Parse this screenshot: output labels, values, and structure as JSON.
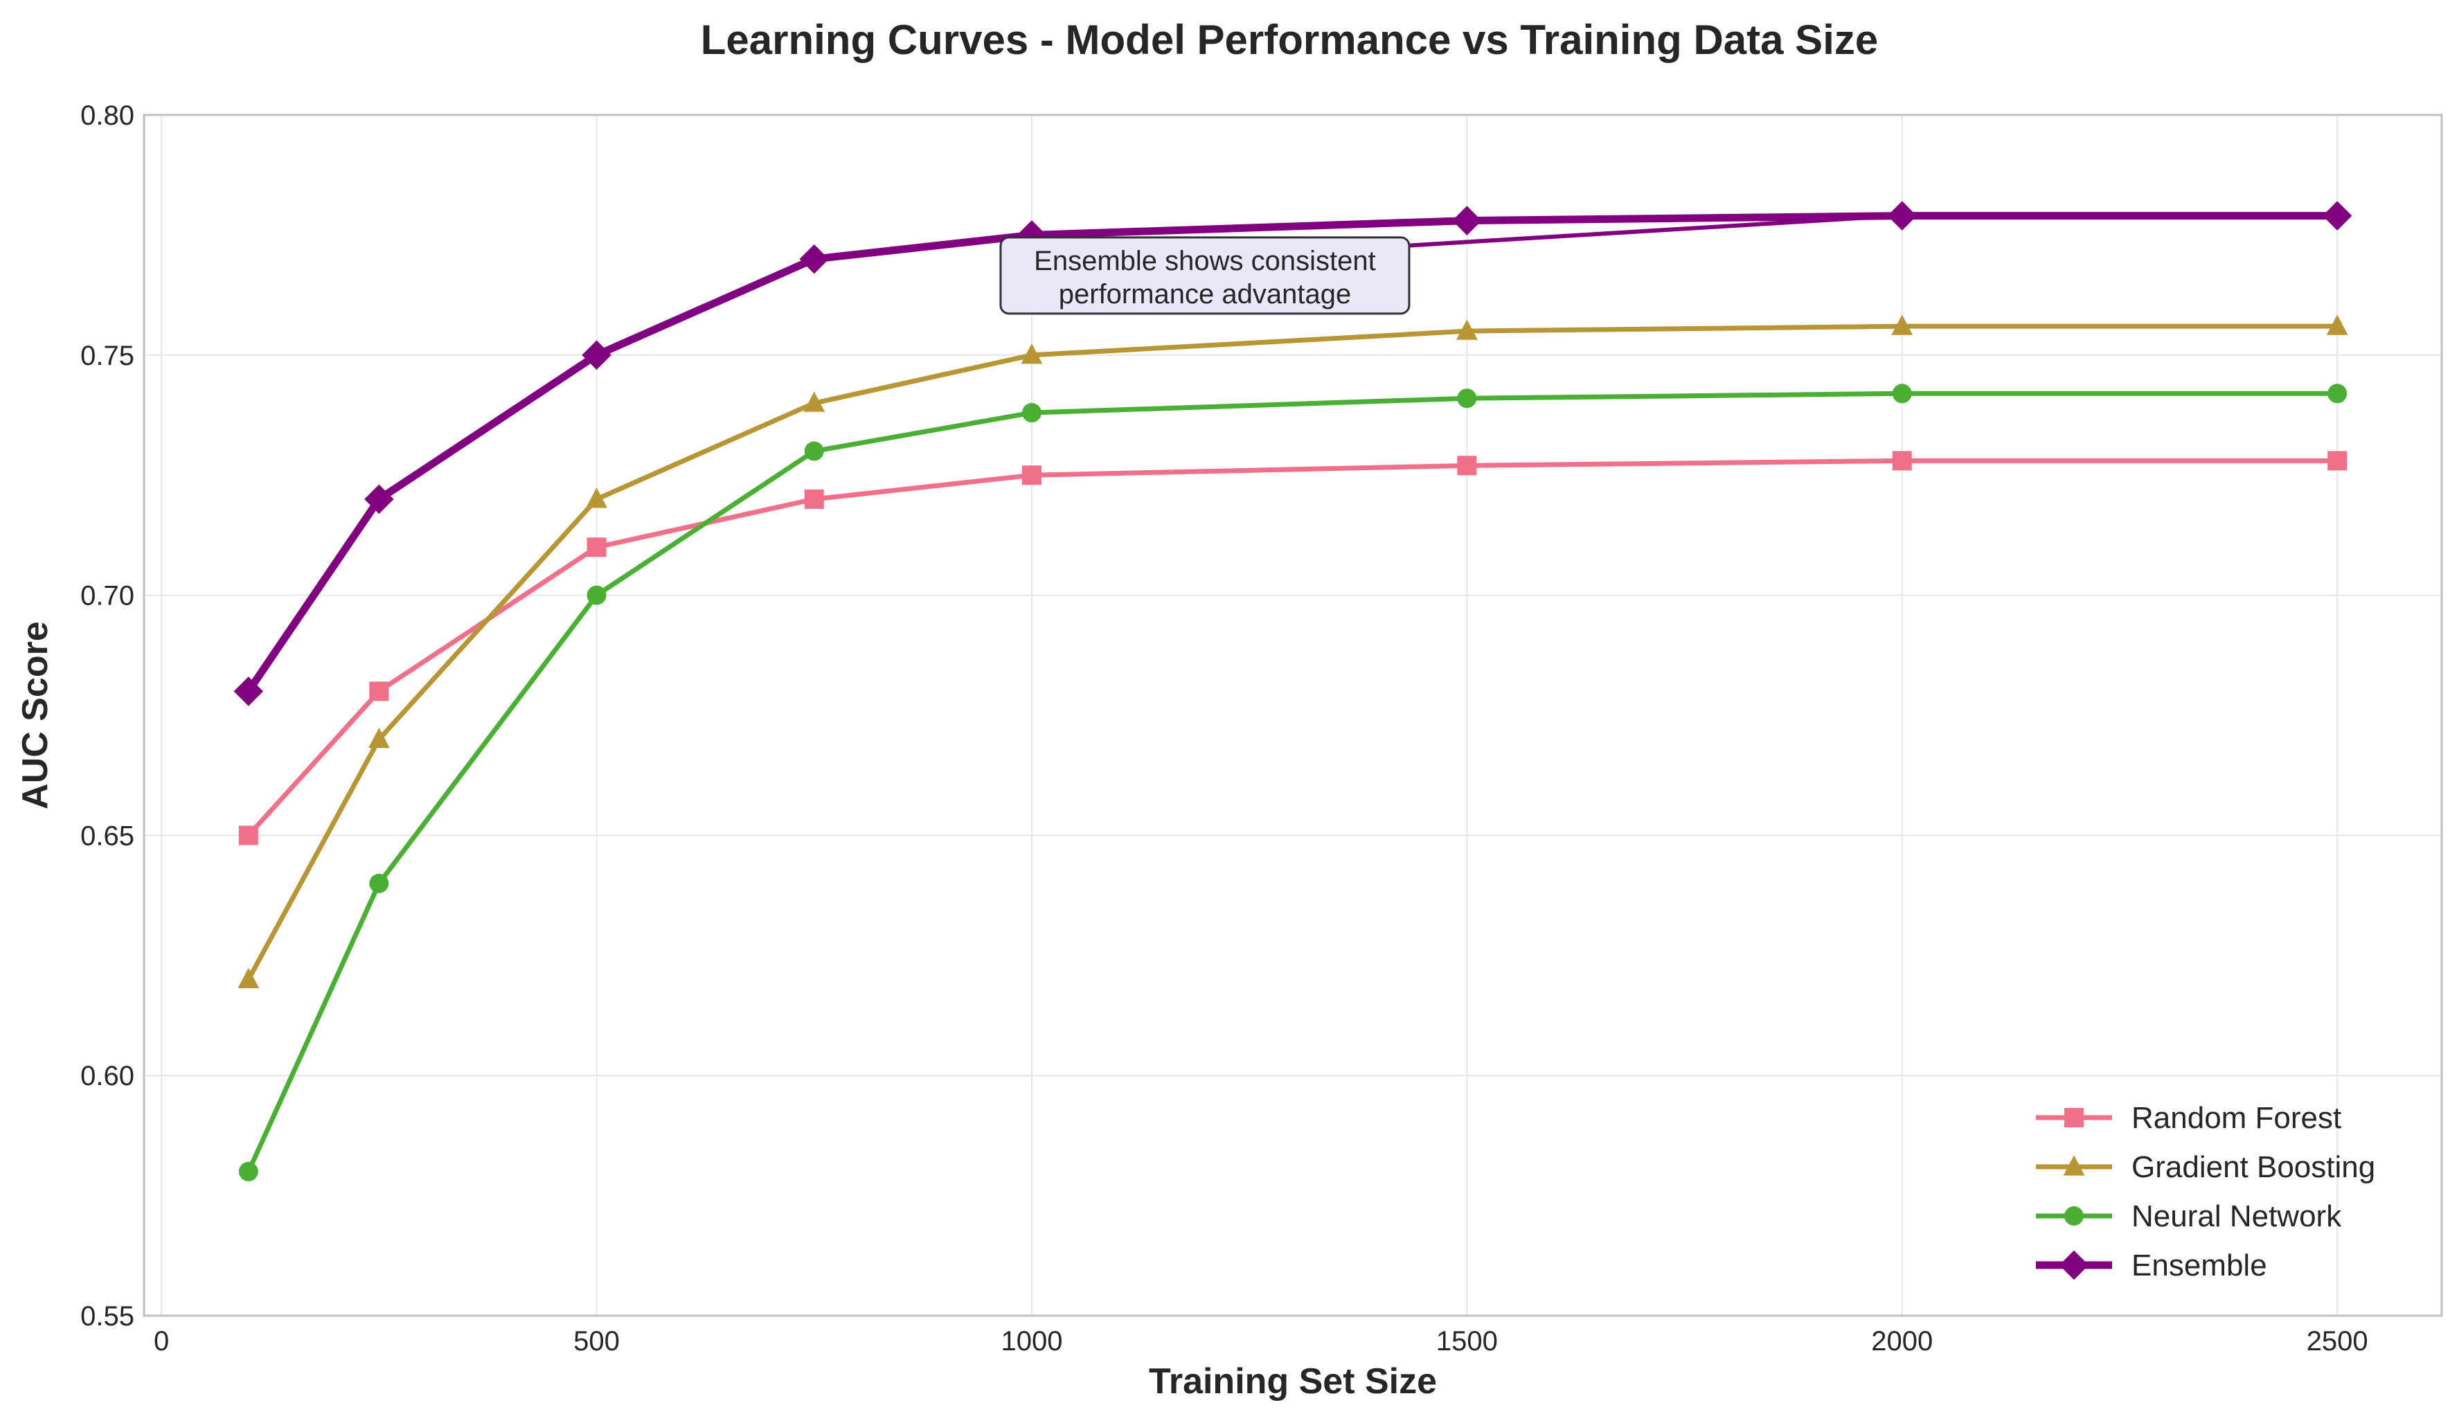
{
  "chart_data": {
    "type": "line",
    "title": "Learning Curves - Model Performance vs Training Data Size",
    "xlabel": "Training Set Size",
    "ylabel": "AUC Score",
    "xlim": [
      -20,
      2620
    ],
    "ylim": [
      0.55,
      0.8
    ],
    "xticks": [
      0,
      500,
      1000,
      1500,
      2000,
      2500
    ],
    "yticks": [
      0.55,
      0.6,
      0.65,
      0.7,
      0.75,
      0.8
    ],
    "xtick_labels": [
      "0",
      "500",
      "1000",
      "1500",
      "2000",
      "2500"
    ],
    "ytick_labels": [
      "0.55",
      "0.60",
      "0.65",
      "0.70",
      "0.75",
      "0.80"
    ],
    "grid": true,
    "legend_position": "bottom-right",
    "x": [
      100,
      250,
      500,
      750,
      1000,
      1500,
      2000,
      2500
    ],
    "series": [
      {
        "name": "Random Forest",
        "color": "#f0708a",
        "marker": "square",
        "linewidth": "normal",
        "values": [
          0.65,
          0.68,
          0.71,
          0.72,
          0.725,
          0.727,
          0.728,
          0.728
        ]
      },
      {
        "name": "Gradient Boosting",
        "color": "#b89535",
        "marker": "triangle",
        "linewidth": "normal",
        "values": [
          0.62,
          0.67,
          0.72,
          0.74,
          0.75,
          0.755,
          0.756,
          0.756
        ]
      },
      {
        "name": "Neural Network",
        "color": "#4caf35",
        "marker": "circle",
        "linewidth": "normal",
        "values": [
          0.58,
          0.64,
          0.7,
          0.73,
          0.738,
          0.741,
          0.742,
          0.742
        ]
      },
      {
        "name": "Ensemble",
        "color": "#800080",
        "marker": "diamond",
        "linewidth": "bold",
        "values": [
          0.68,
          0.72,
          0.75,
          0.77,
          0.775,
          0.778,
          0.779,
          0.779
        ]
      }
    ],
    "annotation": {
      "lines": [
        "Ensemble shows consistent",
        "performance advantage"
      ],
      "text_at": [
        1000,
        0.766
      ],
      "arrow_to": [
        2000,
        0.779
      ]
    }
  }
}
